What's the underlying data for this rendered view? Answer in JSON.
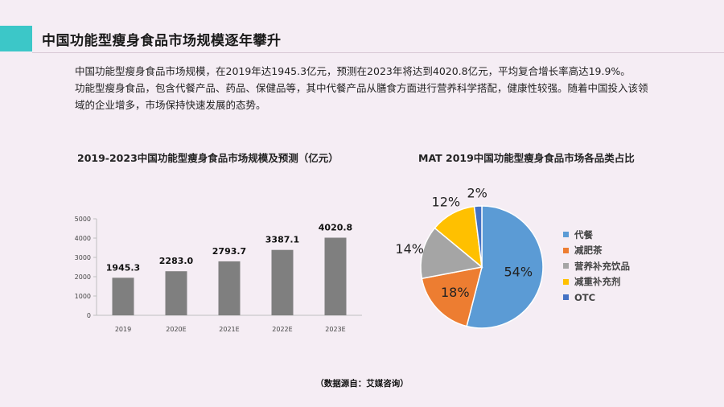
{
  "page": {
    "title": "中国功能型瘦身食品市场规模逐年攀升",
    "paragraph1": "中国功能型瘦身食品市场规模，在2019年达1945.3亿元，预测在2023年将达到4020.8亿元，平均复合增长率高达19.9%。",
    "paragraph2": "功能型瘦身食品，包含代餐产品、药品、保健品等，其中代餐产品从膳食方面进行营养科学搭配，健康性较强。随着中国投入该领域的企业增多，市场保持快速发展的态势。",
    "source": "（数据源自：艾媒咨询）"
  },
  "chart_data": [
    {
      "type": "bar",
      "title": "2019-2023中国功能型瘦身食品市场规模及预测（亿元）",
      "categories": [
        "2019",
        "2020E",
        "2021E",
        "2022E",
        "2023E"
      ],
      "values": [
        1945.3,
        2283.0,
        2793.7,
        3387.1,
        4020.8
      ],
      "value_labels": [
        "1945.3",
        "2283.0",
        "2793.7",
        "3387.1",
        "4020.8"
      ],
      "ylim": [
        0,
        5000
      ],
      "yticks": [
        "0",
        "1000",
        "2000",
        "3000",
        "4000",
        "5000"
      ],
      "grid": false,
      "bar_color": "#7f7f7f"
    },
    {
      "type": "pie",
      "title": "MAT 2019中国功能型瘦身食品市场各品类占比",
      "labels": [
        "代餐",
        "减肥茶",
        "营养补充饮品",
        "减重补充剂",
        "OTC"
      ],
      "values": [
        54,
        18,
        14,
        12,
        2
      ],
      "pct_labels": [
        "54%",
        "18%",
        "14%",
        "12%",
        "2%"
      ],
      "colors": [
        "#5b9bd5",
        "#ed7d31",
        "#a5a5a5",
        "#ffc000",
        "#4472c4"
      ],
      "legend_position": "right"
    }
  ]
}
